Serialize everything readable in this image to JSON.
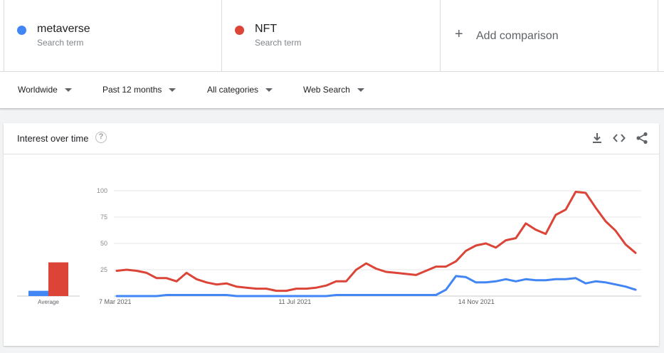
{
  "terms": [
    {
      "name": "metaverse",
      "sub": "Search term",
      "color": "#4285f4"
    },
    {
      "name": "NFT",
      "sub": "Search term",
      "color": "#db4437"
    }
  ],
  "add_comparison": {
    "label": "Add comparison"
  },
  "filters": {
    "region": "Worldwide",
    "time": "Past 12 months",
    "category": "All categories",
    "property": "Web Search"
  },
  "card": {
    "title": "Interest over time",
    "help_icon": "question-circle-icon",
    "actions": [
      "download-icon",
      "embed-code-icon",
      "share-icon"
    ]
  },
  "chart_data": {
    "type": "line",
    "y_ticks": [
      "100",
      "75",
      "50",
      "25"
    ],
    "ylim": [
      0,
      100
    ],
    "x_ticks": [
      {
        "index": 0,
        "label": "7 Mar 2021"
      },
      {
        "index": 18,
        "label": "11 Jul 2021"
      },
      {
        "index": 36,
        "label": "14 Nov 2021"
      }
    ],
    "grid": true,
    "average_label": "Average",
    "averages": [
      {
        "name": "metaverse",
        "value": 5,
        "color": "#4285f4"
      },
      {
        "name": "NFT",
        "value": 32,
        "color": "#db4437"
      }
    ],
    "series": [
      {
        "name": "NFT",
        "color": "#db4437",
        "values": [
          24,
          25,
          24,
          22,
          17,
          17,
          14,
          22,
          16,
          13,
          11,
          12,
          9,
          8,
          7,
          7,
          5,
          5,
          7,
          7,
          8,
          10,
          14,
          14,
          25,
          31,
          26,
          23,
          22,
          21,
          20,
          24,
          28,
          28,
          33,
          43,
          48,
          50,
          46,
          53,
          55,
          69,
          63,
          59,
          77,
          82,
          99,
          98,
          84,
          71,
          62,
          49,
          41
        ]
      },
      {
        "name": "metaverse",
        "color": "#4285f4",
        "values": [
          0,
          0,
          0,
          0,
          0,
          1,
          1,
          1,
          1,
          1,
          1,
          1,
          0,
          0,
          0,
          0,
          0,
          0,
          0,
          0,
          0,
          0,
          1,
          1,
          1,
          1,
          1,
          1,
          1,
          1,
          1,
          1,
          1,
          6,
          19,
          18,
          13,
          13,
          14,
          16,
          14,
          16,
          15,
          15,
          16,
          16,
          17,
          12,
          14,
          13,
          11,
          9,
          6
        ]
      }
    ]
  }
}
